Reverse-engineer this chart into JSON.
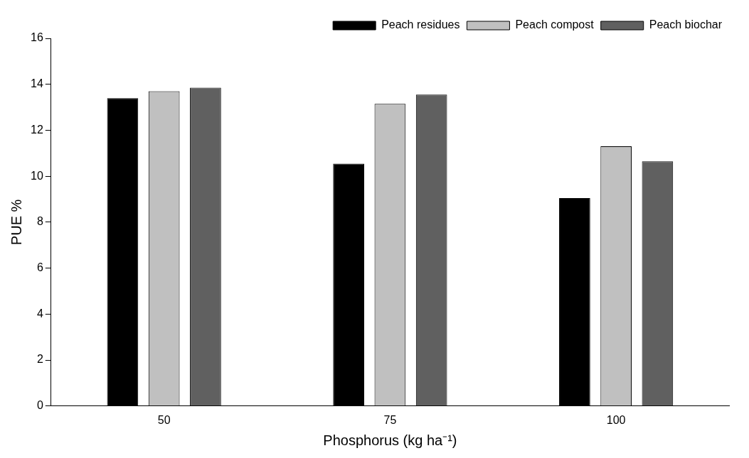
{
  "chart_data": {
    "type": "bar",
    "xlabel": "Phosphorus (kg ha⁻¹)",
    "ylabel": "PUE %",
    "categories": [
      "50",
      "75",
      "100"
    ],
    "series": [
      {
        "name": "Peach residues",
        "color": "#000000",
        "values": [
          13.4,
          10.55,
          9.05
        ]
      },
      {
        "name": "Peach compost",
        "color": "#c0c0c0",
        "values": [
          13.7,
          13.15,
          11.3
        ]
      },
      {
        "name": "Peach biochar",
        "color": "#606060",
        "values": [
          13.85,
          13.55,
          10.65
        ]
      }
    ],
    "ylim": [
      0,
      16
    ],
    "yticks": [
      0,
      2,
      4,
      6,
      8,
      10,
      12,
      14,
      16
    ],
    "grid": false,
    "legend": "top right"
  }
}
